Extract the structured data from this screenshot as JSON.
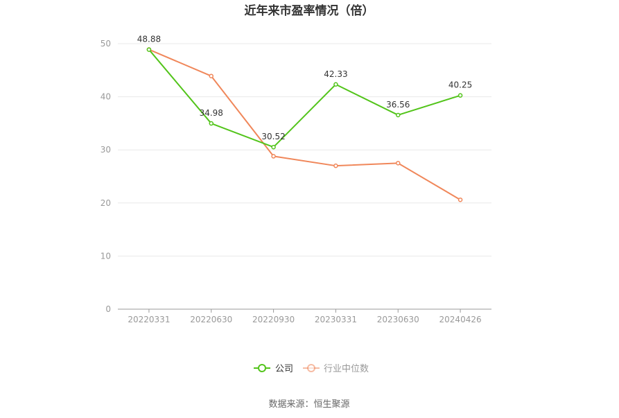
{
  "chart_data": {
    "type": "line",
    "title": "近年来市盈率情况（倍）",
    "categories": [
      "20220331",
      "20220630",
      "20220930",
      "20230331",
      "20230630",
      "20240426"
    ],
    "ylim": [
      0,
      50
    ],
    "yticks": [
      0,
      10,
      20,
      30,
      40,
      50
    ],
    "grid": true,
    "legend_position": "bottom-center",
    "series": [
      {
        "name": "公司",
        "color": "#52c41a",
        "values": [
          48.88,
          34.98,
          30.52,
          42.33,
          36.56,
          40.25
        ],
        "labels": [
          "48.88",
          "34.98",
          "30.52",
          "42.33",
          "36.56",
          "40.25"
        ]
      },
      {
        "name": "行业中位数",
        "color": "#f0875a",
        "values": [
          48.9,
          43.9,
          28.8,
          27.0,
          27.5,
          20.6
        ]
      }
    ],
    "source": "数据来源：恒生聚源"
  }
}
